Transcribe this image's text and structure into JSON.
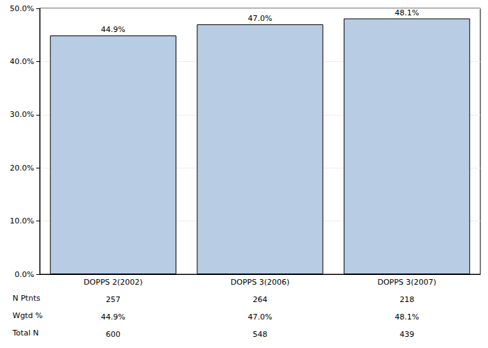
{
  "chart_data": {
    "type": "bar",
    "categories": [
      "DOPPS 2(2002)",
      "DOPPS 3(2006)",
      "DOPPS 3(2007)"
    ],
    "values": [
      44.9,
      47.0,
      48.1
    ],
    "value_labels": [
      "44.9%",
      "47.0%",
      "48.1%"
    ],
    "data_labels": true,
    "color": "#b8cce4",
    "ylim": [
      0,
      50
    ],
    "yticks": [
      {
        "value": 0,
        "label": "0.0%"
      },
      {
        "value": 10,
        "label": "10.0%"
      },
      {
        "value": 20,
        "label": "20.0%"
      },
      {
        "value": 30,
        "label": "30.0%"
      },
      {
        "value": 40,
        "label": "40.0%"
      },
      {
        "value": 50,
        "label": "50.0%"
      }
    ],
    "grid": true,
    "table": {
      "rows": [
        {
          "label": "N Ptnts",
          "values": [
            257,
            264,
            218
          ]
        },
        {
          "label": "Wgtd %",
          "values": [
            44.9,
            47.0,
            48.1
          ],
          "value_labels": [
            "44.9%",
            "47.0%",
            "48.1%"
          ]
        },
        {
          "label": "Total N",
          "values": [
            600,
            548,
            439
          ]
        }
      ]
    }
  }
}
